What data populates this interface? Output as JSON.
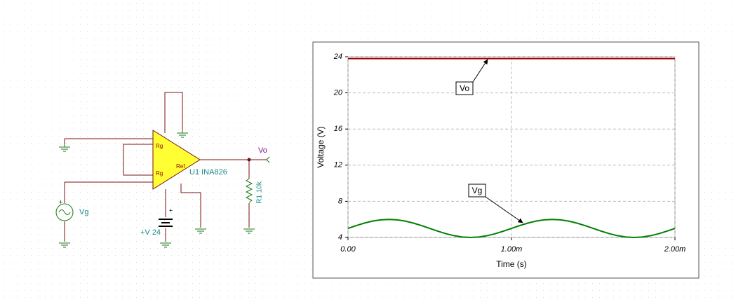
{
  "schematic": {
    "labels": [
      "Rg",
      "Rg",
      "Ref",
      "U1 INA826",
      "Vo",
      "R1 10k",
      "Vg",
      "+V 24",
      "+",
      "+"
    ]
  },
  "chart_data": {
    "type": "line",
    "xlabel": "Time (s)",
    "ylabel": "Voltage (V)",
    "xlim": [
      0,
      0.002
    ],
    "xticks": [
      {
        "value": 0,
        "label": "0.00"
      },
      {
        "value": 0.001,
        "label": "1.00m"
      },
      {
        "value": 0.002,
        "label": "2.00m"
      }
    ],
    "ylim": [
      4,
      24
    ],
    "yticks": [
      4,
      8,
      12,
      16,
      20,
      24
    ],
    "grid": true,
    "annotations": [
      "Vo",
      "Vg"
    ],
    "series": [
      {
        "name": "Vo",
        "color": "#a00000",
        "x": [
          0,
          0.002
        ],
        "values": [
          23.8,
          23.8
        ]
      },
      {
        "name": "Vg",
        "color": "#008000",
        "x": [
          0,
          5e-05,
          0.0001,
          0.00015,
          0.0002,
          0.00025,
          0.0003,
          0.00035,
          0.0004,
          0.00045,
          0.0005,
          0.00055,
          0.0006,
          0.00065,
          0.0007,
          0.00075,
          0.0008,
          0.00085,
          0.0009,
          0.00095,
          0.001,
          0.00105,
          0.0011,
          0.00115,
          0.0012,
          0.00125,
          0.0013,
          0.00135,
          0.0014,
          0.00145,
          0.0015,
          0.00155,
          0.0016,
          0.00165,
          0.0017,
          0.00175,
          0.0018,
          0.00185,
          0.0019,
          0.00195,
          0.002
        ],
        "values": [
          5,
          5.31,
          5.59,
          5.81,
          5.95,
          6,
          5.95,
          5.81,
          5.59,
          5.31,
          5,
          4.69,
          4.41,
          4.19,
          4.05,
          4,
          4.05,
          4.19,
          4.41,
          4.69,
          5,
          5.31,
          5.59,
          5.81,
          5.95,
          6,
          5.95,
          5.81,
          5.59,
          5.31,
          5,
          4.69,
          4.41,
          4.19,
          4.05,
          4,
          4.05,
          4.19,
          4.41,
          4.69,
          5
        ]
      }
    ]
  }
}
